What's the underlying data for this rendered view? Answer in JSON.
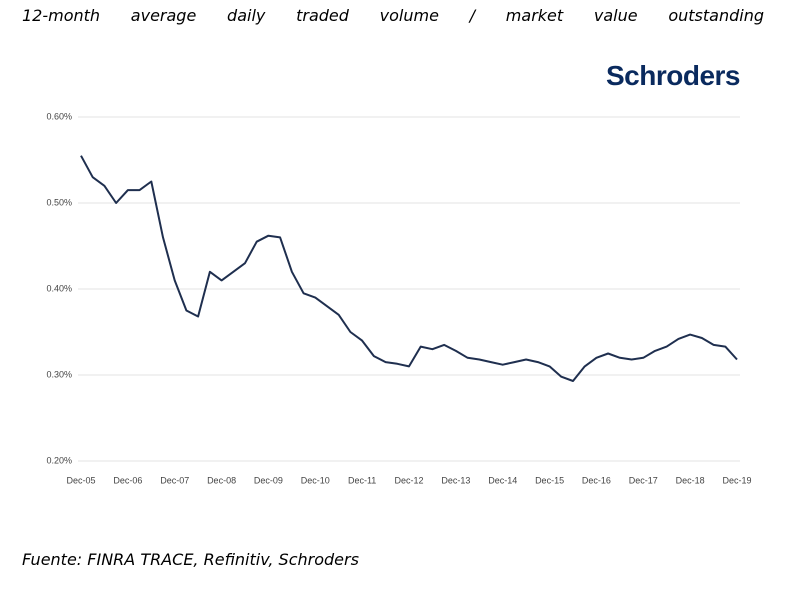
{
  "chart_data": {
    "type": "line",
    "title": "12-month average daily traded volume / market value outstanding",
    "logo": "Schroders",
    "source": "Fuente: FINRA TRACE, Refinitiv, Schroders",
    "categories": [
      "Dec-05",
      null,
      null,
      null,
      "Dec-06",
      null,
      null,
      null,
      "Dec-07",
      null,
      null,
      null,
      "Dec-08",
      null,
      null,
      null,
      "Dec-09",
      null,
      null,
      null,
      "Dec-10",
      null,
      null,
      null,
      "Dec-11",
      null,
      null,
      null,
      "Dec-12",
      null,
      null,
      null,
      "Dec-13",
      null,
      null,
      null,
      "Dec-14",
      null,
      null,
      null,
      "Dec-15",
      null,
      null,
      null,
      "Dec-16",
      null,
      null,
      null,
      "Dec-17",
      null,
      null,
      null,
      "Dec-18",
      null,
      null,
      null,
      "Dec-19"
    ],
    "series": [
      {
        "name": "12-month average daily traded volume / market value outstanding",
        "color": "#1f2f4f",
        "values": [
          0.555,
          0.53,
          0.52,
          0.5,
          0.515,
          0.515,
          0.525,
          0.46,
          0.41,
          0.375,
          0.368,
          0.42,
          0.41,
          0.42,
          0.43,
          0.455,
          0.462,
          0.46,
          0.42,
          0.395,
          0.39,
          0.38,
          0.37,
          0.35,
          0.34,
          0.322,
          0.315,
          0.313,
          0.31,
          0.333,
          0.33,
          0.335,
          0.328,
          0.32,
          0.318,
          0.315,
          0.312,
          0.315,
          0.318,
          0.315,
          0.31,
          0.298,
          0.293,
          0.31,
          0.32,
          0.325,
          0.32,
          0.318,
          0.32,
          0.328,
          0.333,
          0.342,
          0.347,
          0.343,
          0.335,
          0.333,
          0.318
        ]
      }
    ],
    "ylim": [
      0.2,
      0.6
    ],
    "yticks": [
      {
        "value": 0.2,
        "label": "0.20%"
      },
      {
        "value": 0.3,
        "label": "0.30%"
      },
      {
        "value": 0.4,
        "label": "0.40%"
      },
      {
        "value": 0.5,
        "label": "0.50%"
      },
      {
        "value": 0.6,
        "label": "0.60%"
      }
    ],
    "grid": true
  }
}
